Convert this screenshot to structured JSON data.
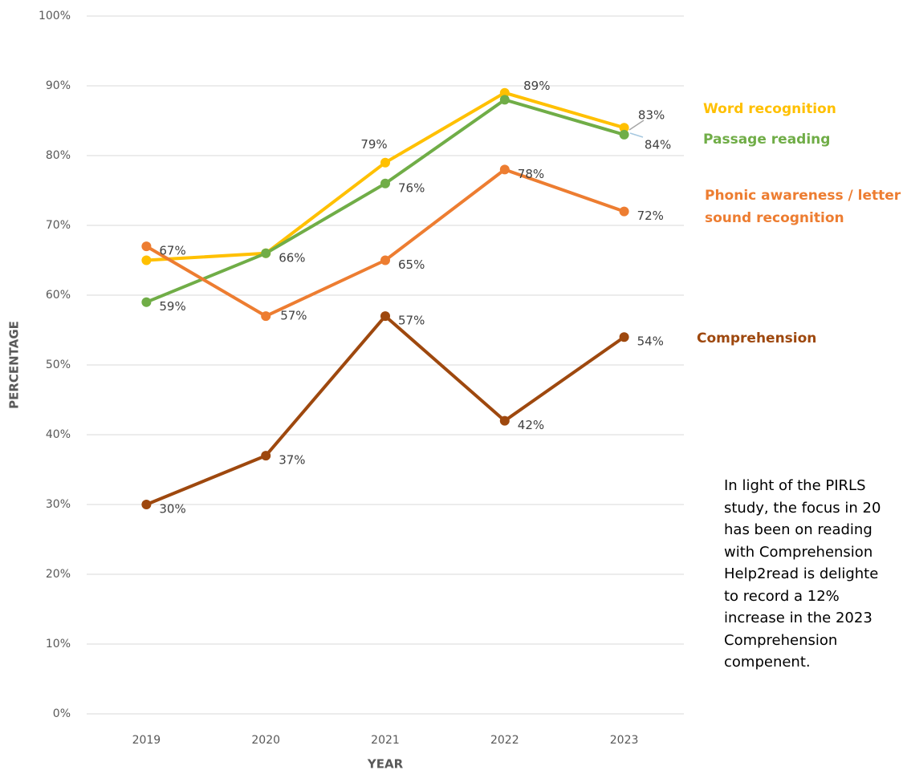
{
  "chart_data": {
    "type": "line",
    "x_label": "YEAR",
    "y_label": "PERCENTAGE",
    "categories": [
      "2019",
      "2020",
      "2021",
      "2022",
      "2023"
    ],
    "series": [
      {
        "name": "Word recognition",
        "color": "#FFC000",
        "values": [
          65,
          66,
          79,
          89,
          84
        ],
        "value_labels": [
          null,
          null,
          "79%",
          "89%",
          "84%"
        ]
      },
      {
        "name": "Passage reading",
        "color": "#70AD47",
        "values": [
          59,
          66,
          76,
          88,
          83
        ],
        "value_labels": [
          "59%",
          "66%",
          "76%",
          null,
          "83%"
        ]
      },
      {
        "name": "Phonic awareness / letter sound recognition",
        "color": "#ED7D31",
        "values": [
          67,
          57,
          65,
          78,
          72
        ],
        "value_labels": [
          "67%",
          "57%",
          "65%",
          "78%",
          "72%"
        ]
      },
      {
        "name": "Comprehension",
        "color": "#9E480E",
        "values": [
          30,
          37,
          57,
          42,
          54
        ],
        "value_labels": [
          "30%",
          "37%",
          "57%",
          "42%",
          "54%"
        ]
      }
    ],
    "ylim": [
      0,
      100
    ],
    "yticks": [
      {
        "value": 0,
        "label": "0%"
      },
      {
        "value": 10,
        "label": "10%"
      },
      {
        "value": 20,
        "label": "20%"
      },
      {
        "value": 30,
        "label": "30%"
      },
      {
        "value": 40,
        "label": "40%"
      },
      {
        "value": 50,
        "label": "50%"
      },
      {
        "value": 60,
        "label": "60%"
      },
      {
        "value": 70,
        "label": "70%"
      },
      {
        "value": 80,
        "label": "80%"
      },
      {
        "value": 90,
        "label": "90%"
      },
      {
        "value": 100,
        "label": "100%"
      }
    ],
    "grid": true,
    "annotation": [
      "In light of the PIRLS",
      "study, the focus in 20",
      "has been on reading",
      "with Comprehension",
      "Help2read is delighte",
      "to record a 12%",
      "increase in the 2023",
      "Comprehension",
      "compenent."
    ]
  }
}
